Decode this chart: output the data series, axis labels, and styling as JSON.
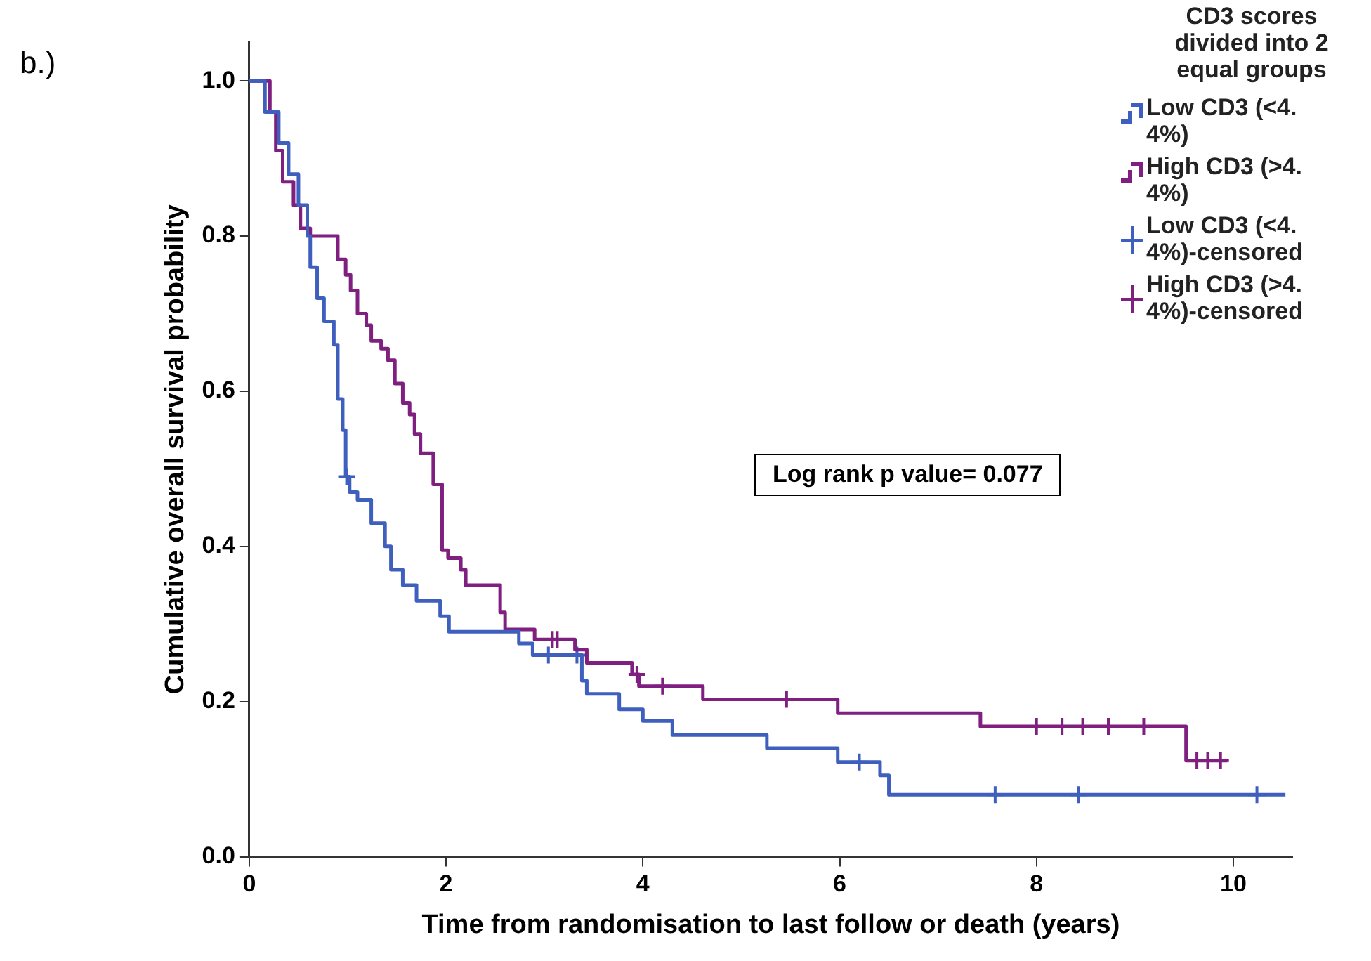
{
  "chart_data": {
    "type": "step",
    "xlabel": "Time from randomisation to last follow or death (years)",
    "ylabel": "Cumulative overall survival probability",
    "legend_title": "CD3 scores divided into 2 equal groups",
    "legend": "top right",
    "grid": false,
    "xlim": [
      0,
      10.6
    ],
    "xticks": [
      0,
      2,
      4,
      6,
      8,
      10
    ],
    "ylim": [
      0,
      1.05
    ],
    "yticks": [
      {
        "value": 0,
        "label": "0.0"
      },
      {
        "value": 0.2,
        "label": "0.2"
      },
      {
        "value": 0.4,
        "label": "0.4"
      },
      {
        "value": 0.6,
        "label": "0.6"
      },
      {
        "value": 0.8,
        "label": "0.8"
      },
      {
        "value": 1,
        "label": "1.0"
      }
    ],
    "annotations": [
      "b.)",
      "Log rank p value= 0.077"
    ],
    "series": [
      {
        "name": "Low CD3 (<4.4%)",
        "color": "#3f5fbf",
        "x": [
          0,
          0.16,
          0.3,
          0.4,
          0.5,
          0.59,
          0.62,
          0.69,
          0.76,
          0.86,
          0.9,
          0.95,
          0.98,
          1.02,
          1.1,
          1.24,
          1.38,
          1.44,
          1.56,
          1.7,
          1.94,
          2.03,
          2.74,
          2.88,
          3.38,
          3.43,
          3.76,
          4.0,
          4.3,
          5.26,
          5.98,
          6.41,
          6.5,
          10.53
        ],
        "values": [
          1,
          0.96,
          0.92,
          0.88,
          0.84,
          0.8,
          0.76,
          0.72,
          0.69,
          0.66,
          0.59,
          0.55,
          0.49,
          0.47,
          0.46,
          0.43,
          0.4,
          0.37,
          0.35,
          0.33,
          0.31,
          0.29,
          0.275,
          0.26,
          0.227,
          0.21,
          0.19,
          0.175,
          0.157,
          0.14,
          0.122,
          0.105,
          0.08,
          0.08
        ]
      },
      {
        "name": "High CD3 (>4.4%)",
        "color": "#7f1f7f",
        "x": [
          0,
          0.21,
          0.27,
          0.34,
          0.45,
          0.52,
          0.62,
          0.9,
          0.98,
          1.03,
          1.1,
          1.19,
          1.24,
          1.34,
          1.41,
          1.48,
          1.56,
          1.63,
          1.68,
          1.74,
          1.87,
          1.96,
          2.02,
          2.15,
          2.2,
          2.55,
          2.6,
          2.9,
          3.31,
          3.43,
          3.89,
          3.96,
          4.61,
          5.98,
          7.43,
          9.52,
          9.94
        ],
        "values": [
          1,
          0.96,
          0.91,
          0.87,
          0.84,
          0.81,
          0.8,
          0.77,
          0.75,
          0.73,
          0.7,
          0.685,
          0.665,
          0.655,
          0.64,
          0.61,
          0.585,
          0.57,
          0.545,
          0.52,
          0.48,
          0.395,
          0.385,
          0.37,
          0.35,
          0.315,
          0.293,
          0.28,
          0.267,
          0.25,
          0.235,
          0.22,
          0.203,
          0.185,
          0.168,
          0.124,
          0.124
        ]
      },
      {
        "name": "Low CD3 (<4.4%)-censored",
        "type": "scatter",
        "marker": "cross",
        "color": "#3f5fbf",
        "x": [
          0.99,
          3.04,
          3.33,
          6.2,
          7.58,
          8.43,
          10.24
        ],
        "values": [
          0.49,
          0.26,
          0.26,
          0.122,
          0.08,
          0.08,
          0.08
        ]
      },
      {
        "name": "High CD3 (>4.4%)-censored",
        "type": "scatter",
        "marker": "cross",
        "color": "#7f1f7f",
        "x": [
          3.08,
          3.13,
          3.94,
          4.2,
          5.46,
          8.0,
          8.26,
          8.47,
          8.73,
          9.09,
          9.63,
          9.74,
          9.87
        ],
        "values": [
          0.28,
          0.28,
          0.235,
          0.22,
          0.203,
          0.168,
          0.168,
          0.168,
          0.168,
          0.168,
          0.124,
          0.124,
          0.124
        ]
      }
    ]
  }
}
